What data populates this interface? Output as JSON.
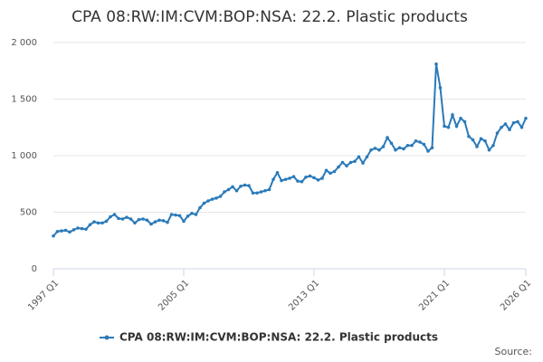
{
  "chart_data": {
    "type": "line",
    "title": "CPA 08:RW:IM:CVM:BOP:NSA: 22.2. Plastic products",
    "source": "Source:",
    "categories": [
      "1997 Q1",
      null,
      null,
      null,
      null,
      null,
      null,
      null,
      null,
      null,
      null,
      null,
      null,
      null,
      null,
      null,
      null,
      null,
      null,
      null,
      null,
      null,
      null,
      null,
      null,
      null,
      null,
      null,
      null,
      null,
      null,
      null,
      "2005 Q1",
      null,
      null,
      null,
      null,
      null,
      null,
      null,
      null,
      null,
      null,
      null,
      null,
      null,
      null,
      null,
      null,
      null,
      null,
      null,
      null,
      null,
      null,
      null,
      null,
      null,
      null,
      null,
      null,
      null,
      null,
      null,
      "2013 Q1",
      null,
      null,
      null,
      null,
      null,
      null,
      null,
      null,
      null,
      null,
      null,
      null,
      null,
      null,
      null,
      null,
      null,
      null,
      null,
      null,
      null,
      null,
      null,
      null,
      null,
      null,
      null,
      null,
      null,
      null,
      null,
      "2021 Q1",
      null,
      null,
      null,
      null,
      null,
      null,
      null,
      null,
      null,
      null,
      null,
      null,
      null,
      null,
      null,
      null,
      null,
      null,
      null,
      "2026 Q1"
    ],
    "series": [
      {
        "name": "CPA 08:RW:IM:CVM:BOP:NSA: 22.2. Plastic products",
        "color": "#2a7ab9",
        "values": [
          290,
          330,
          335,
          340,
          325,
          345,
          360,
          355,
          350,
          390,
          415,
          405,
          405,
          420,
          460,
          480,
          445,
          440,
          455,
          440,
          405,
          435,
          440,
          430,
          395,
          415,
          430,
          425,
          410,
          480,
          475,
          470,
          420,
          465,
          490,
          480,
          540,
          580,
          600,
          615,
          625,
          640,
          680,
          700,
          725,
          690,
          730,
          740,
          735,
          670,
          670,
          680,
          690,
          700,
          790,
          850,
          780,
          790,
          800,
          815,
          775,
          770,
          810,
          820,
          805,
          785,
          800,
          870,
          845,
          860,
          900,
          940,
          910,
          940,
          950,
          990,
          935,
          990,
          1050,
          1065,
          1050,
          1080,
          1160,
          1110,
          1050,
          1070,
          1060,
          1090,
          1090,
          1130,
          1120,
          1100,
          1040,
          1070,
          1810,
          1600,
          1260,
          1250,
          1360,
          1260,
          1330,
          1300,
          1170,
          1140,
          1080,
          1150,
          1130,
          1050,
          1090,
          1200,
          1250,
          1280,
          1230,
          1290,
          1300,
          1250,
          1330
        ]
      }
    ],
    "ylim": [
      0,
      2000
    ],
    "yticks": [
      0,
      {
        "value": 500,
        "label": "500"
      },
      {
        "value": 1000,
        "label": "1 000"
      },
      {
        "value": 1500,
        "label": "1 500"
      },
      {
        "value": 2000,
        "label": "2 000"
      }
    ],
    "grid": true,
    "legend": "bottom"
  }
}
